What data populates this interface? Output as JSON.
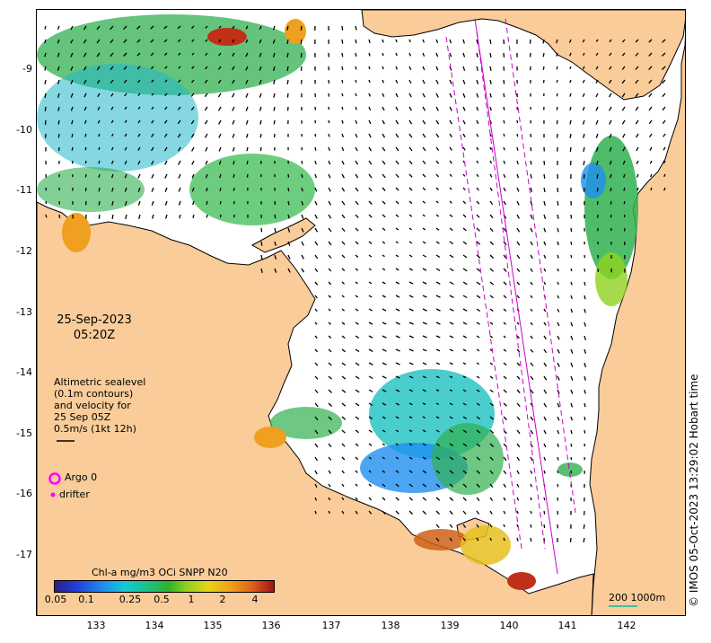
{
  "map": {
    "date": "25-Sep-2023",
    "time": "05:20Z",
    "altimetry_legend": [
      "Altimetric sealevel",
      "(0.1m contours)",
      "and velocity for",
      "25 Sep 05Z",
      "0.5m/s (1kt 12h)"
    ],
    "argo_label": "Argo 0",
    "drifter_label": "drifter",
    "colorbar": {
      "title": "Chl-a mg/m3 OCi SNPP N20",
      "ticks": [
        "0.05",
        "0.1",
        "0.25",
        "0.5",
        "1",
        "2",
        "4"
      ]
    },
    "scale_label": "200  1000m",
    "copyright": "© IMOS 05-Oct-2023 13:29:02 Hobart time",
    "lat_ticks": [
      "-9",
      "-10",
      "-11",
      "-12",
      "-13",
      "-14",
      "-15",
      "-16",
      "-17"
    ],
    "lon_ticks": [
      "133",
      "134",
      "135",
      "136",
      "137",
      "138",
      "139",
      "140",
      "141",
      "142"
    ],
    "colors": {
      "land": "#f9cc99",
      "ocean": "#ffffff",
      "coast": "#000000",
      "track": "#cc00cc",
      "argo": "#ff00ff"
    }
  }
}
